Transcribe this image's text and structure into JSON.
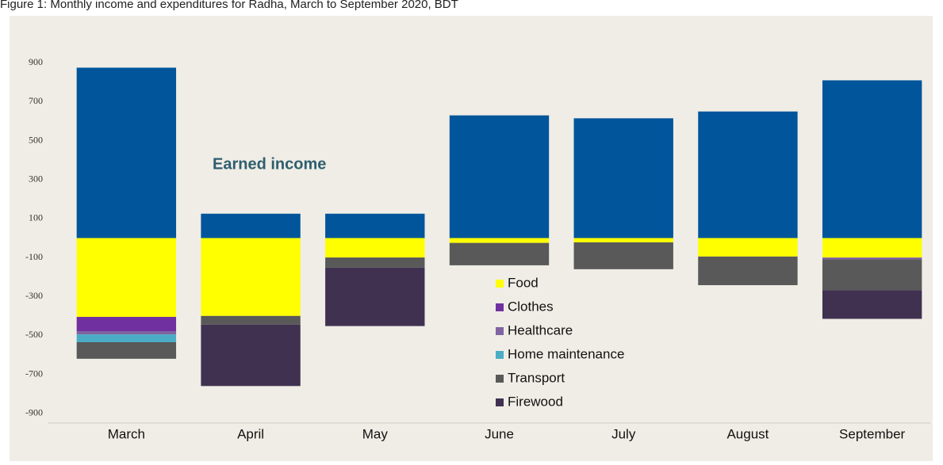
{
  "chart_data": {
    "type": "stacked_bar",
    "title": "Figure 1: Monthly income and expenditures for Radha, March to September 2020, BDT",
    "categories": [
      "March",
      "April",
      "May",
      "June",
      "July",
      "August",
      "September"
    ],
    "series": [
      {
        "name": "Earned income",
        "color": "#00559b",
        "values": [
          875,
          125,
          125,
          630,
          615,
          650,
          810
        ]
      },
      {
        "name": "Food",
        "color": "#ffff00",
        "values": [
          -405,
          -400,
          -100,
          -25,
          -22,
          -95,
          -100
        ]
      },
      {
        "name": "Clothes",
        "color": "#7030a0",
        "values": [
          -73,
          0,
          0,
          0,
          0,
          0,
          0
        ]
      },
      {
        "name": "Healthcare",
        "color": "#8064a2",
        "values": [
          -17,
          0,
          0,
          0,
          0,
          0,
          -10
        ]
      },
      {
        "name": "Home maintenance",
        "color": "#4bacc6",
        "values": [
          -40,
          0,
          0,
          0,
          0,
          0,
          0
        ]
      },
      {
        "name": "Transport",
        "color": "#595959",
        "values": [
          -85,
          -45,
          -52,
          -115,
          -138,
          -147,
          -158
        ]
      },
      {
        "name": "Firewood",
        "color": "#403151",
        "values": [
          0,
          -315,
          -300,
          0,
          0,
          0,
          -147
        ]
      }
    ],
    "ylim": [
      -950,
      950
    ],
    "yticks": [
      900,
      700,
      500,
      300,
      100,
      -100,
      -300,
      -500,
      -700,
      -900
    ]
  }
}
